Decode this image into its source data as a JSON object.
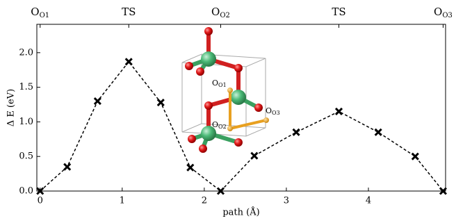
{
  "chart_data": {
    "type": "line",
    "xlabel": "path (Å)",
    "ylabel": "Δ E (eV)",
    "x": [
      0,
      0.33,
      0.7,
      1.08,
      1.47,
      1.83,
      2.2,
      2.61,
      3.12,
      3.64,
      4.12,
      4.57,
      4.91
    ],
    "series": [
      {
        "color": "#000000",
        "values": [
          0,
          0.35,
          1.3,
          1.87,
          1.28,
          0.34,
          0,
          0.51,
          0.85,
          1.15,
          0.85,
          0.5,
          0
        ]
      }
    ],
    "xlim": [
      -0.04,
      4.94
    ],
    "ylim": [
      0,
      2.41
    ],
    "xticks": [
      0,
      1,
      2,
      3,
      4
    ],
    "yticks": [
      {
        "value": 0,
        "label": "0.0"
      },
      {
        "value": 0.5,
        "label": "0.5"
      },
      {
        "value": 1,
        "label": "1.0"
      },
      {
        "value": 1.5,
        "label": "1.5"
      },
      {
        "value": 2,
        "label": "2.0"
      }
    ],
    "top_ticks": [
      {
        "value": 0,
        "label": "O",
        "sub": "O1"
      },
      {
        "value": 1.08,
        "label": "TS"
      },
      {
        "value": 2.2,
        "label": "O",
        "sub": "O2"
      },
      {
        "value": 3.64,
        "label": "TS"
      },
      {
        "value": 4.91,
        "label": "O",
        "sub": "O3"
      }
    ],
    "inset_labels": [
      {
        "label": "O",
        "sub": "O1"
      },
      {
        "label": "O",
        "sub": "O2"
      },
      {
        "label": "O",
        "sub": "O3"
      }
    ]
  }
}
